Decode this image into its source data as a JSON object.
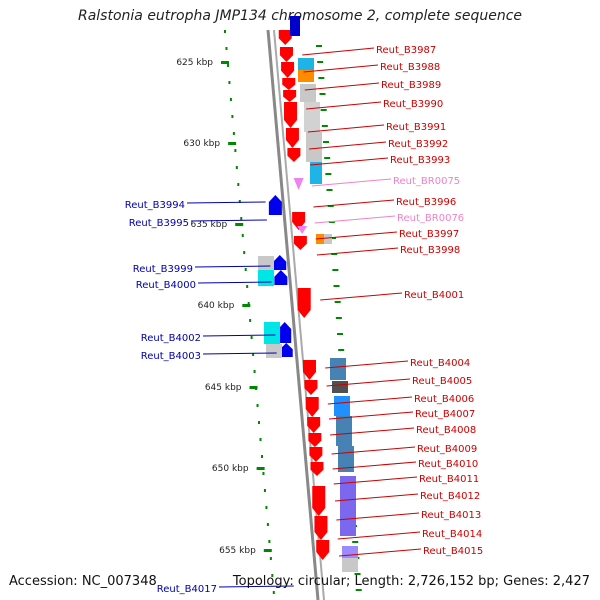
{
  "title": "Ralstonia eutropha JMP134 chromosome 2, complete sequence",
  "accession": "Accession: NC_007348",
  "topology": "Topology: circular; Length: 2,726,152 bp; Genes: 2,427",
  "scale_labels": [
    "625 kbp",
    "630 kbp",
    "635 kbp",
    "640 kbp",
    "645 kbp",
    "650 kbp",
    "655 kbp"
  ],
  "left_genes": [
    "Reut_B3994",
    "Reut_B3995",
    "Reut_B3999",
    "Reut_B4000",
    "Reut_B4002",
    "Reut_B4003",
    "Reut_B4017"
  ],
  "right_genes": [
    "Reut_B3987",
    "Reut_B3988",
    "Reut_B3989",
    "Reut_B3990",
    "Reut_B3991",
    "Reut_B3992",
    "Reut_B3993",
    "Reut_BR0075",
    "Reut_B3996",
    "Reut_BR0076",
    "Reut_B3997",
    "Reut_B3998",
    "Reut_B4001",
    "Reut_B4004",
    "Reut_B4005",
    "Reut_B4006",
    "Reut_B4007",
    "Reut_B4008",
    "Reut_B4009",
    "Reut_B4010",
    "Reut_B4011",
    "Reut_B4012",
    "Reut_B4013",
    "Reut_B4014",
    "Reut_B4015"
  ],
  "colors": {
    "forward": "#ff0000",
    "reverse": "#0000ee",
    "rna": "#ee82ee",
    "label_right": "#cc0000",
    "label_left": "#0000aa",
    "label_rna": "#ee82c8",
    "scale": "#008800",
    "backbone": "#888888"
  }
}
